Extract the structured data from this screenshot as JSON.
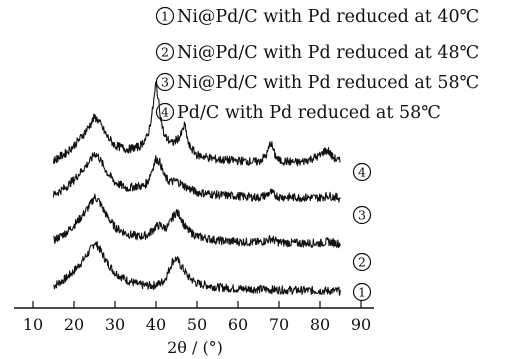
{
  "chart_data": {
    "type": "line",
    "xlabel": "2θ / (°)",
    "xlim": [
      10,
      90
    ],
    "x_ticks": [
      "10",
      "20",
      "30",
      "40",
      "50",
      "60",
      "70",
      "80",
      "90"
    ],
    "ylabel": "",
    "y_axis_visible": false,
    "grid": false,
    "legend_position": "top-right",
    "legend": [
      {
        "marker": "1",
        "label": "Ni@Pd/C with Pd reduced at 40℃"
      },
      {
        "marker": "2",
        "label": "Ni@Pd/C with Pd reduced at 48℃"
      },
      {
        "marker": "3",
        "label": "Ni@Pd/C with Pd reduced at 58℃"
      },
      {
        "marker": "4",
        "label": "Pd/C with Pd reduced at 58℃"
      }
    ],
    "series": [
      {
        "marker": "1",
        "offset": 0.0,
        "x": [
          15,
          18,
          20,
          22,
          24,
          25,
          26,
          28,
          30,
          33,
          36,
          39,
          41,
          42,
          43,
          44,
          45,
          46,
          48,
          50,
          55,
          60,
          65,
          70,
          75,
          80,
          85
        ],
        "y": [
          0.55,
          0.75,
          0.95,
          1.2,
          1.5,
          1.7,
          1.58,
          1.18,
          0.9,
          0.7,
          0.58,
          0.56,
          0.62,
          0.7,
          0.92,
          1.2,
          1.28,
          1.1,
          0.78,
          0.62,
          0.52,
          0.48,
          0.47,
          0.45,
          0.44,
          0.43,
          0.42
        ]
      },
      {
        "marker": "2",
        "offset": 1.2,
        "x": [
          15,
          18,
          20,
          22,
          24,
          25,
          26,
          28,
          30,
          33,
          36,
          38,
          39,
          40,
          41,
          42,
          43,
          44,
          45,
          46,
          47,
          48,
          50,
          55,
          60,
          65,
          67,
          68,
          69,
          70,
          75,
          80,
          82,
          85
        ],
        "y": [
          0.55,
          0.75,
          0.95,
          1.2,
          1.5,
          1.7,
          1.6,
          1.2,
          0.9,
          0.72,
          0.65,
          0.7,
          0.8,
          0.92,
          0.95,
          0.88,
          0.92,
          1.15,
          1.3,
          1.18,
          0.92,
          0.8,
          0.66,
          0.55,
          0.52,
          0.5,
          0.55,
          0.6,
          0.55,
          0.5,
          0.48,
          0.48,
          0.52,
          0.46
        ]
      },
      {
        "marker": "3",
        "offset": 2.4,
        "x": [
          15,
          18,
          20,
          22,
          24,
          25,
          26,
          28,
          30,
          33,
          35,
          37,
          38,
          39,
          40,
          41,
          42,
          43,
          44,
          45,
          46,
          47,
          48,
          50,
          55,
          60,
          65,
          67,
          68,
          69,
          70,
          75,
          80,
          82,
          85
        ],
        "y": [
          0.55,
          0.75,
          0.95,
          1.2,
          1.45,
          1.65,
          1.55,
          1.15,
          0.88,
          0.72,
          0.78,
          0.78,
          0.9,
          1.2,
          1.5,
          1.4,
          1.05,
          0.92,
          0.9,
          0.92,
          0.85,
          0.78,
          0.72,
          0.62,
          0.55,
          0.52,
          0.48,
          0.55,
          0.62,
          0.55,
          0.5,
          0.48,
          0.48,
          0.53,
          0.46
        ]
      },
      {
        "marker": "4",
        "offset": 3.3,
        "x": [
          15,
          18,
          20,
          22,
          24,
          25,
          26,
          28,
          30,
          33,
          36,
          38,
          39,
          40,
          41,
          42,
          44,
          46,
          47,
          48,
          50,
          55,
          60,
          65,
          67,
          68,
          69,
          70,
          75,
          80,
          81,
          82,
          83,
          85
        ],
        "y": [
          0.55,
          0.75,
          0.95,
          1.2,
          1.5,
          1.7,
          1.6,
          1.2,
          0.95,
          0.85,
          0.92,
          1.2,
          1.75,
          2.6,
          1.8,
          1.2,
          1.0,
          1.2,
          1.5,
          0.95,
          0.7,
          0.58,
          0.55,
          0.52,
          0.7,
          1.05,
          0.7,
          0.55,
          0.5,
          0.68,
          0.8,
          0.82,
          0.65,
          0.52
        ]
      }
    ]
  }
}
